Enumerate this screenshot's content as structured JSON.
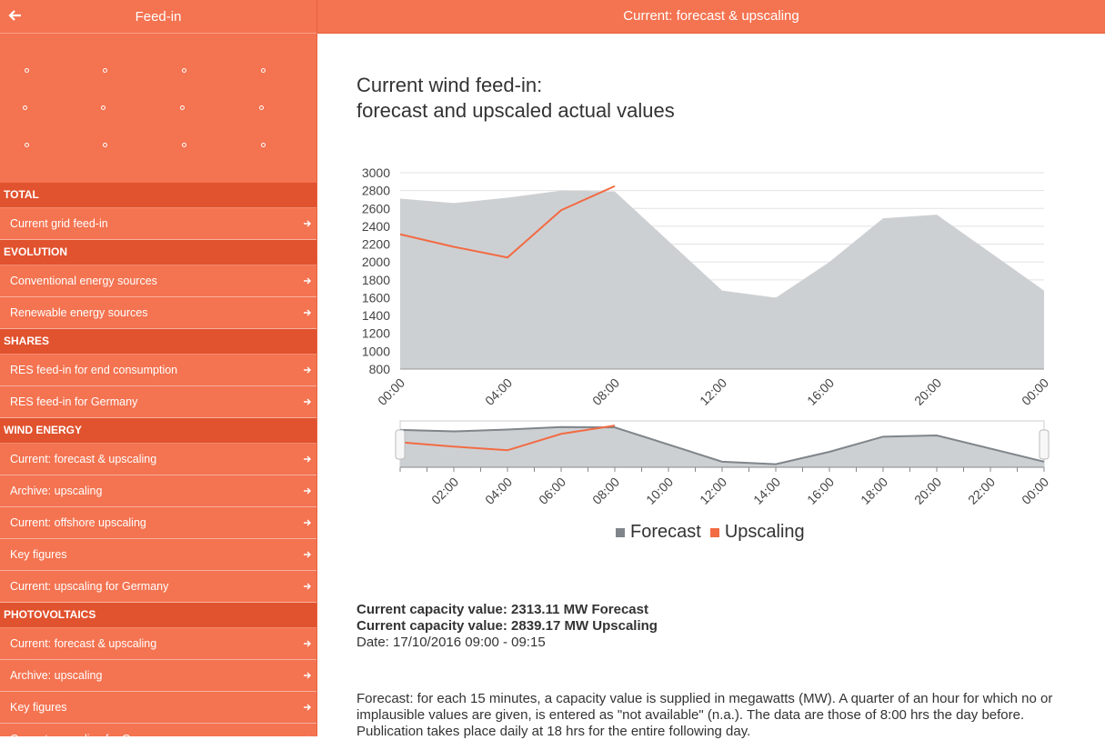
{
  "sidebar": {
    "title": "Feed-in",
    "sections": [
      {
        "label": "TOTAL",
        "items": [
          "Current grid feed-in"
        ]
      },
      {
        "label": "EVOLUTION",
        "items": [
          "Conventional energy sources",
          "Renewable energy sources"
        ]
      },
      {
        "label": "SHARES",
        "items": [
          "RES feed-in for end consumption",
          "RES feed-in for Germany"
        ]
      },
      {
        "label": "WIND ENERGY",
        "items": [
          "Current: forecast & upscaling",
          "Archive: upscaling",
          "Current: offshore upscaling",
          "Key figures",
          "Current: upscaling for Germany"
        ]
      },
      {
        "label": "PHOTOVOLTAICS",
        "items": [
          "Current: forecast & upscaling",
          "Archive: upscaling",
          "Key figures",
          "Current: upscaling for Germany"
        ]
      }
    ]
  },
  "topbar": {
    "title": "Current: forecast & upscaling"
  },
  "main": {
    "heading_line1": "Current wind feed-in:",
    "heading_line2": "forecast and upscaled actual values",
    "capacity_forecast": "Current capacity value: 2313.11 MW Forecast",
    "capacity_upscaling": "Current capacity value: 2839.17 MW Upscaling",
    "date": "Date: 17/10/2016 09:00 - 09:15",
    "description": "Forecast: for each 15 minutes, a capacity value is supplied in megawatts (MW). A quarter of an hour for which no or implausible values are given, is entered as \"not available\" (n.a.). The data are those of 8:00 hrs the day before. Publication takes place daily at 18 hrs for the entire following day."
  },
  "colors": {
    "brand": "#f47350",
    "section": "#e1522e",
    "forecast": "#7f858a",
    "forecast_fill": "#cdd0d3",
    "upscaling": "#f26b43"
  },
  "chart_data": {
    "type": "area",
    "ylim": [
      800,
      3000
    ],
    "yticks": [
      800,
      1000,
      1200,
      1400,
      1600,
      1800,
      2000,
      2200,
      2400,
      2600,
      2800,
      3000
    ],
    "xlim": [
      0,
      24
    ],
    "xticks": [
      "00:00",
      "04:00",
      "08:00",
      "12:00",
      "16:00",
      "20:00",
      "00:00"
    ],
    "navigator_xticks": [
      "02:00",
      "04:00",
      "06:00",
      "08:00",
      "10:00",
      "12:00",
      "14:00",
      "16:00",
      "18:00",
      "20:00",
      "22:00",
      "00:00"
    ],
    "series": [
      {
        "name": "Forecast",
        "type": "area",
        "x": [
          0,
          2,
          4,
          6,
          8,
          12,
          14,
          16,
          18,
          20,
          24
        ],
        "values": [
          2710,
          2660,
          2720,
          2800,
          2790,
          1680,
          1600,
          2000,
          2490,
          2530,
          1680
        ]
      },
      {
        "name": "Upscaling",
        "type": "line",
        "x": [
          0,
          2,
          4,
          6,
          8
        ],
        "values": [
          2310,
          2170,
          2050,
          2580,
          2850
        ]
      }
    ],
    "legend": "bottom"
  }
}
